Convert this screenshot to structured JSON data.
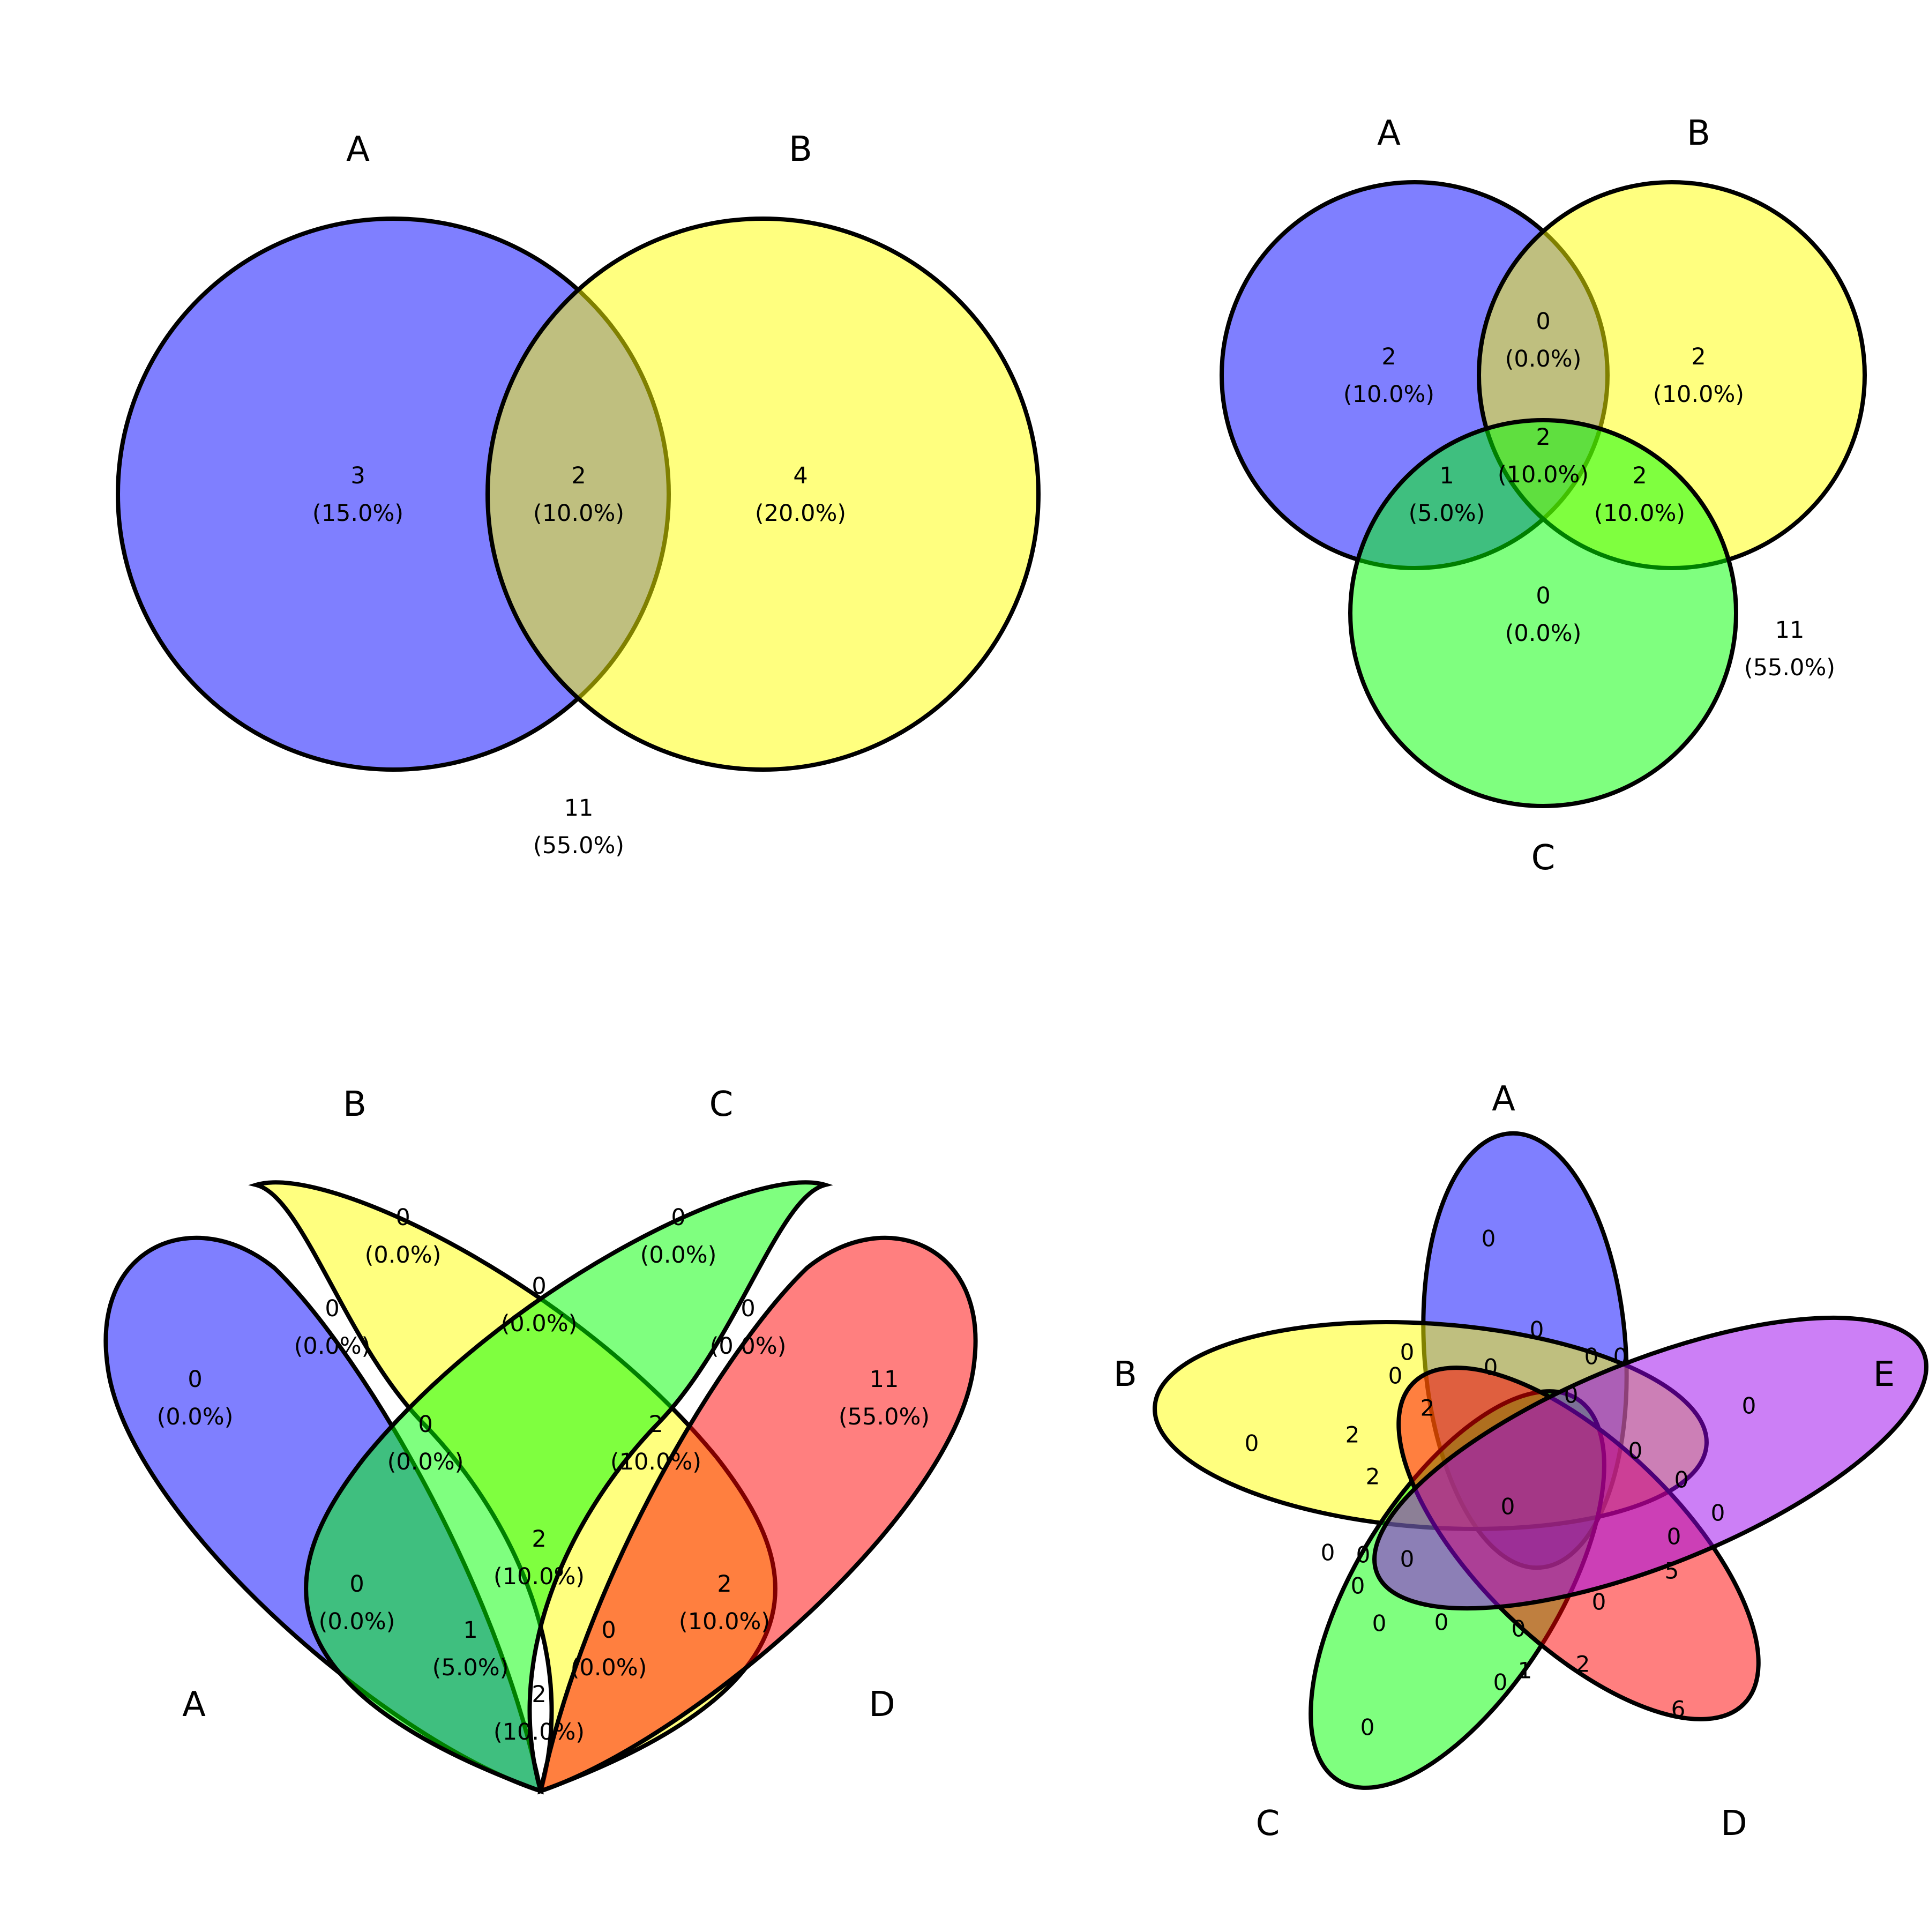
{
  "venn2": {
    "sets": [
      {
        "name": "A",
        "color": "#0000FF"
      },
      {
        "name": "B",
        "color": "#FFFF00"
      }
    ],
    "regions": {
      "A": {
        "count": "3",
        "pct": "(15.0%)"
      },
      "AB": {
        "count": "2",
        "pct": "(10.0%)"
      },
      "B": {
        "count": "4",
        "pct": "(20.0%)"
      },
      "none": {
        "count": "11",
        "pct": "(55.0%)"
      }
    }
  },
  "venn3": {
    "sets": [
      {
        "name": "A",
        "color": "#0000FF"
      },
      {
        "name": "B",
        "color": "#FFFF00"
      },
      {
        "name": "C",
        "color": "#00FF00"
      }
    ],
    "regions": {
      "A": {
        "count": "2",
        "pct": "(10.0%)"
      },
      "AB": {
        "count": "0",
        "pct": "(0.0%)"
      },
      "B": {
        "count": "2",
        "pct": "(10.0%)"
      },
      "ABC": {
        "count": "2",
        "pct": "(10.0%)"
      },
      "AC": {
        "count": "1",
        "pct": "(5.0%)"
      },
      "BC": {
        "count": "2",
        "pct": "(10.0%)"
      },
      "C": {
        "count": "0",
        "pct": "(0.0%)"
      },
      "none": {
        "count": "11",
        "pct": "(55.0%)"
      }
    }
  },
  "venn4": {
    "sets": [
      {
        "name": "A",
        "color": "#0000FF"
      },
      {
        "name": "B",
        "color": "#FFFF00"
      },
      {
        "name": "C",
        "color": "#00FF00"
      },
      {
        "name": "D",
        "color": "#FF0000"
      }
    ],
    "regions": {
      "B": {
        "count": "0",
        "pct": "(0.0%)"
      },
      "C": {
        "count": "0",
        "pct": "(0.0%)"
      },
      "AB": {
        "count": "0",
        "pct": "(0.0%)"
      },
      "BC": {
        "count": "0",
        "pct": "(0.0%)"
      },
      "CD": {
        "count": "0",
        "pct": "(0.0%)"
      },
      "A": {
        "count": "0",
        "pct": "(0.0%)"
      },
      "none": {
        "count": "11",
        "pct": "(55.0%)"
      },
      "ABC": {
        "count": "0",
        "pct": "(0.0%)"
      },
      "BCD": {
        "count": "2",
        "pct": "(10.0%)"
      },
      "ABCD": {
        "count": "2",
        "pct": "(10.0%)"
      },
      "AC": {
        "count": "0",
        "pct": "(0.0%)"
      },
      "BD": {
        "count": "2",
        "pct": "(10.0%)"
      },
      "ACD": {
        "count": "1",
        "pct": "(5.0%)"
      },
      "ABD": {
        "count": "0",
        "pct": "(0.0%)"
      },
      "AD": {
        "count": "2",
        "pct": "(10.0%)"
      }
    }
  },
  "venn5": {
    "sets": [
      {
        "name": "A",
        "color": "#0000FF"
      },
      {
        "name": "B",
        "color": "#FFFF00"
      },
      {
        "name": "C",
        "color": "#00FF00"
      },
      {
        "name": "D",
        "color": "#FF0000"
      },
      {
        "name": "E",
        "color": "#9900EE"
      }
    ],
    "counts": [
      "0",
      "0",
      "0",
      "0",
      "0",
      "0",
      "0",
      "0",
      "0",
      "0",
      "2",
      "2",
      "2",
      "0",
      "0",
      "0",
      "0",
      "0",
      "0",
      "5",
      "0",
      "0",
      "0",
      "0",
      "0",
      "0",
      "0",
      "0",
      "1",
      "2",
      "0",
      "6"
    ]
  }
}
